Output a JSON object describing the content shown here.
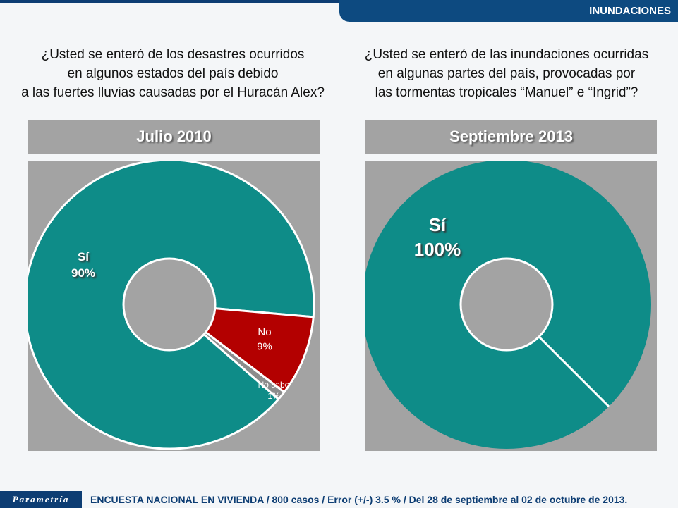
{
  "header": {
    "section": "INUNDACIONES"
  },
  "questions": [
    [
      "¿Usted se enteró de los desastres ocurridos",
      "en algunos estados del país debido",
      "a las fuertes lluvias causadas por el Huracán Alex?"
    ],
    [
      "¿Usted se enteró de las inundaciones ocurridas",
      "en algunas partes del país, provocadas por",
      "las tormentas tropicales “Manuel” e “Ingrid”?"
    ]
  ],
  "chart_data": [
    {
      "type": "pie",
      "title": "Julio 2010",
      "slices": [
        {
          "label": "No",
          "value": 9,
          "value_label": "9%",
          "color": "#b30000"
        },
        {
          "label": "No sabe",
          "value": 1,
          "value_label": "1%",
          "color": "#8c8c8c"
        },
        {
          "label": "Sí",
          "value": 90,
          "value_label": "90%",
          "color": "#0e8c88"
        }
      ]
    },
    {
      "type": "pie",
      "title": "Septiembre 2013",
      "slices": [
        {
          "label": "Sí",
          "value": 100,
          "value_label": "100%",
          "color": "#0e8c88"
        }
      ]
    }
  ],
  "footer": {
    "logo": "Parametría",
    "text": "ENCUESTA NACIONAL EN VIVIENDA / 800 casos / Error (+/-) 3.5 % / Del 28 de septiembre al 02 de octubre de 2013."
  }
}
